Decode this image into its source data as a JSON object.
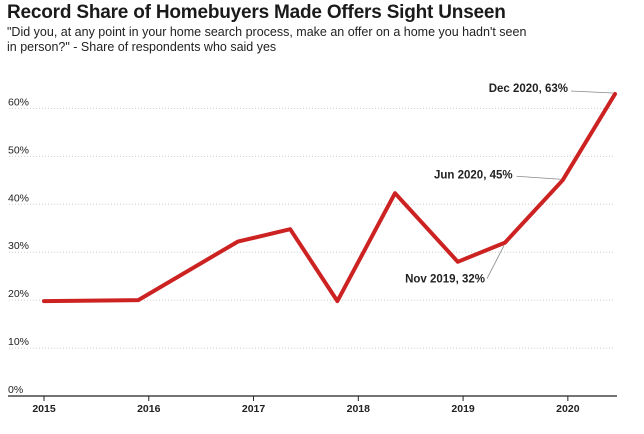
{
  "title": "Record Share of Homebuyers Made Offers Sight Unseen",
  "subtitle": "\"Did you, at any point in your home search process, make an offer on a home you hadn't seen in person?\" - Share of respondents who said yes",
  "colors": {
    "line": "#cc2222",
    "grid": "#cccccc",
    "axis": "#222222"
  },
  "chart_data": {
    "type": "line",
    "title": "Record Share of Homebuyers Made Offers Sight Unseen",
    "xlabel": "",
    "ylabel": "",
    "xlim": [
      2015.0,
      2020.45
    ],
    "ylim": [
      0,
      63
    ],
    "x_ticks": [
      2015,
      2016,
      2017,
      2018,
      2019,
      2020
    ],
    "x_tick_labels": [
      "2015",
      "2016",
      "2017",
      "2018",
      "2019",
      "2020"
    ],
    "y_ticks": [
      0,
      10,
      20,
      30,
      40,
      50,
      60
    ],
    "y_tick_labels": [
      "0%",
      "10%",
      "20%",
      "30%",
      "40%",
      "50%",
      "60%"
    ],
    "grid": "horizontal dotted",
    "series": [
      {
        "x": [
          2015.0,
          2015.9,
          2016.85,
          2017.35,
          2017.8,
          2018.35,
          2018.95,
          2019.4,
          2019.95,
          2020.45
        ],
        "y": [
          19.8,
          20.0,
          32.2,
          34.8,
          19.8,
          42.3,
          28.0,
          32.0,
          45.0,
          63.0
        ]
      }
    ],
    "annotations": [
      {
        "text": "Dec 2020, 63%",
        "x": 2020.45,
        "y": 63
      },
      {
        "text": "Jun 2020, 45%",
        "x": 2019.95,
        "y": 45
      },
      {
        "text": "Nov 2019, 32%",
        "x": 2019.4,
        "y": 32
      }
    ]
  }
}
